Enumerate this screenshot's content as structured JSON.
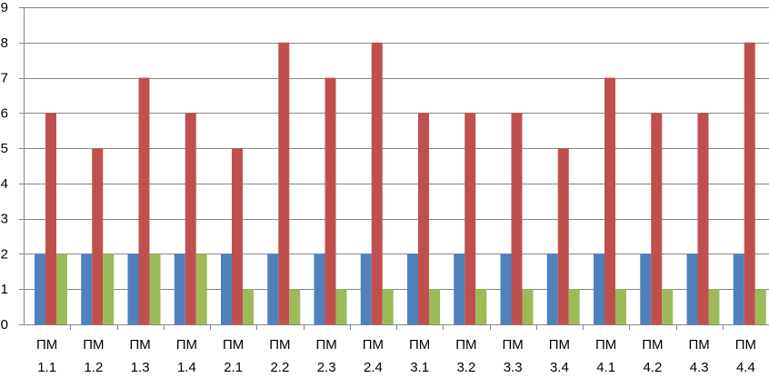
{
  "chart_data": {
    "type": "bar",
    "title": "",
    "xlabel": "",
    "ylabel": "",
    "ylim": [
      0,
      9
    ],
    "yticks": [
      0,
      1,
      2,
      3,
      4,
      5,
      6,
      7,
      8,
      9
    ],
    "grid": true,
    "legend": "none",
    "categories": [
      [
        "ПМ",
        "1.1"
      ],
      [
        "ПМ",
        "1.2"
      ],
      [
        "ПМ",
        "1.3"
      ],
      [
        "ПМ",
        "1.4"
      ],
      [
        "ПМ",
        "2.1"
      ],
      [
        "ПМ",
        "2.2"
      ],
      [
        "ПМ",
        "2.3"
      ],
      [
        "ПМ",
        "2.4"
      ],
      [
        "ПМ",
        "3.1"
      ],
      [
        "ПМ",
        "3.2"
      ],
      [
        "ПМ",
        "3.3"
      ],
      [
        "ПМ",
        "3.4"
      ],
      [
        "ПМ",
        "4.1"
      ],
      [
        "ПМ",
        "4.2"
      ],
      [
        "ПМ",
        "4.3"
      ],
      [
        "ПМ",
        "4.4"
      ]
    ],
    "series": [
      {
        "color": "#4f81bd",
        "values": [
          2,
          2,
          2,
          2,
          2,
          2,
          2,
          2,
          2,
          2,
          2,
          2,
          2,
          2,
          2,
          2
        ]
      },
      {
        "color": "#c0504d",
        "values": [
          6,
          5,
          7,
          6,
          5,
          8,
          7,
          8,
          6,
          6,
          6,
          5,
          7,
          6,
          6,
          8
        ]
      },
      {
        "color": "#9bbb59",
        "values": [
          2,
          2,
          2,
          2,
          1,
          1,
          1,
          1,
          1,
          1,
          1,
          1,
          1,
          1,
          1,
          1
        ]
      }
    ]
  }
}
